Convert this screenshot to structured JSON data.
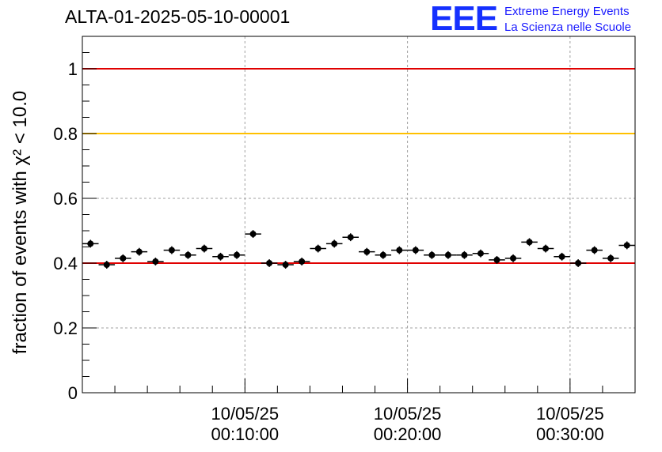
{
  "title": "ALTA-01-2025-05-10-00001",
  "logo": {
    "letters": "EEE",
    "line1": "Extreme Energy Events",
    "line2": "La Scienza nelle Scuole",
    "color": "#1a1aff"
  },
  "chart_data": {
    "type": "scatter",
    "title": "ALTA-01-2025-05-10-00001",
    "ylabel": "fraction of events with χ² < 10.0",
    "xlabel": "",
    "ylim": [
      0,
      1.1
    ],
    "xlim_minutes": [
      0,
      34
    ],
    "yticks": [
      "0",
      "0.2",
      "0.4",
      "0.6",
      "0.8",
      "1"
    ],
    "xticks": [
      {
        "minute": 10,
        "date": "10/05/25",
        "time": "00:10:00"
      },
      {
        "minute": 20,
        "date": "10/05/25",
        "time": "00:20:00"
      },
      {
        "minute": 30,
        "date": "10/05/25",
        "time": "00:30:00"
      }
    ],
    "grid": true,
    "reference_lines": [
      {
        "y": 1.0,
        "color": "#e00000"
      },
      {
        "y": 0.8,
        "color": "#ffc000"
      },
      {
        "y": 0.4,
        "color": "#e00000"
      }
    ],
    "bin_width_minutes": 1,
    "x_minutes": [
      0.5,
      1.5,
      2.5,
      3.5,
      4.5,
      5.5,
      6.5,
      7.5,
      8.5,
      9.5,
      10.5,
      11.5,
      12.5,
      13.5,
      14.5,
      15.5,
      16.5,
      17.5,
      18.5,
      19.5,
      20.5,
      21.5,
      22.5,
      23.5,
      24.5,
      25.5,
      26.5,
      27.5,
      28.5,
      29.5,
      30.5,
      31.5,
      32.5,
      33.5
    ],
    "values": [
      0.46,
      0.395,
      0.415,
      0.435,
      0.405,
      0.44,
      0.425,
      0.445,
      0.42,
      0.425,
      0.49,
      0.4,
      0.395,
      0.405,
      0.445,
      0.46,
      0.48,
      0.435,
      0.425,
      0.44,
      0.44,
      0.425,
      0.425,
      0.425,
      0.43,
      0.41,
      0.415,
      0.465,
      0.445,
      0.42,
      0.4,
      0.44,
      0.415,
      0.455
    ],
    "error": 0.012,
    "marker_color": "#000000"
  }
}
